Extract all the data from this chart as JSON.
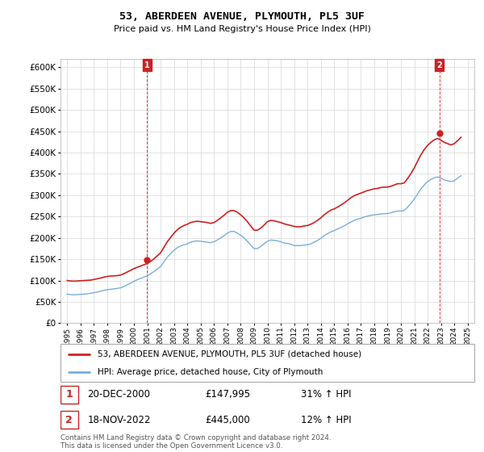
{
  "title": "53, ABERDEEN AVENUE, PLYMOUTH, PL5 3UF",
  "subtitle": "Price paid vs. HM Land Registry's House Price Index (HPI)",
  "ylim": [
    0,
    620000
  ],
  "yticks": [
    0,
    50000,
    100000,
    150000,
    200000,
    250000,
    300000,
    350000,
    400000,
    450000,
    500000,
    550000,
    600000
  ],
  "xlim_start": 1994.5,
  "xlim_end": 2025.5,
  "xticks": [
    1995,
    1996,
    1997,
    1998,
    1999,
    2000,
    2001,
    2002,
    2003,
    2004,
    2005,
    2006,
    2007,
    2008,
    2009,
    2010,
    2011,
    2012,
    2013,
    2014,
    2015,
    2016,
    2017,
    2018,
    2019,
    2020,
    2021,
    2022,
    2023,
    2024,
    2025
  ],
  "xtick_labels": [
    "1995",
    "1996",
    "1997",
    "1998",
    "1999",
    "2000",
    "2001",
    "2002",
    "2003",
    "2004",
    "2005",
    "2006",
    "2007",
    "2008",
    "2009",
    "2010",
    "2011",
    "2012",
    "2013",
    "2014",
    "2015",
    "2016",
    "2017",
    "2018",
    "2019",
    "2020",
    "2021",
    "2022",
    "2023",
    "2024",
    "2025"
  ],
  "grid_color": "#dddddd",
  "hpi_color": "#7aaddb",
  "price_color": "#cc2222",
  "dashed_color": "#cc2222",
  "legend_label_price": "53, ABERDEEN AVENUE, PLYMOUTH, PL5 3UF (detached house)",
  "legend_label_hpi": "HPI: Average price, detached house, City of Plymouth",
  "sale1_year": 2000.97,
  "sale1_price": 147995,
  "sale2_year": 2022.88,
  "sale2_price": 445000,
  "annotation1_date": "20-DEC-2000",
  "annotation1_price": "£147,995",
  "annotation1_hpi": "31% ↑ HPI",
  "annotation2_date": "18-NOV-2022",
  "annotation2_price": "£445,000",
  "annotation2_hpi": "12% ↑ HPI",
  "footnote": "Contains HM Land Registry data © Crown copyright and database right 2024.\nThis data is licensed under the Open Government Licence v3.0.",
  "hpi_data": [
    [
      1995.0,
      68000
    ],
    [
      1995.25,
      67000
    ],
    [
      1995.5,
      66500
    ],
    [
      1995.75,
      67000
    ],
    [
      1996.0,
      67500
    ],
    [
      1996.25,
      68000
    ],
    [
      1996.5,
      69000
    ],
    [
      1996.75,
      70000
    ],
    [
      1997.0,
      71500
    ],
    [
      1997.25,
      73000
    ],
    [
      1997.5,
      75000
    ],
    [
      1997.75,
      77000
    ],
    [
      1998.0,
      78500
    ],
    [
      1998.25,
      79500
    ],
    [
      1998.5,
      80500
    ],
    [
      1998.75,
      81500
    ],
    [
      1999.0,
      83000
    ],
    [
      1999.25,
      86000
    ],
    [
      1999.5,
      90000
    ],
    [
      1999.75,
      94000
    ],
    [
      2000.0,
      98000
    ],
    [
      2000.25,
      102000
    ],
    [
      2000.5,
      105000
    ],
    [
      2000.75,
      108000
    ],
    [
      2001.0,
      111000
    ],
    [
      2001.25,
      116000
    ],
    [
      2001.5,
      121000
    ],
    [
      2001.75,
      127000
    ],
    [
      2002.0,
      133000
    ],
    [
      2002.25,
      144000
    ],
    [
      2002.5,
      155000
    ],
    [
      2002.75,
      163000
    ],
    [
      2003.0,
      171000
    ],
    [
      2003.25,
      177000
    ],
    [
      2003.5,
      181000
    ],
    [
      2003.75,
      184000
    ],
    [
      2004.0,
      186000
    ],
    [
      2004.25,
      190000
    ],
    [
      2004.5,
      192000
    ],
    [
      2004.75,
      193000
    ],
    [
      2005.0,
      192000
    ],
    [
      2005.25,
      191000
    ],
    [
      2005.5,
      190000
    ],
    [
      2005.75,
      189000
    ],
    [
      2006.0,
      191000
    ],
    [
      2006.25,
      195000
    ],
    [
      2006.5,
      200000
    ],
    [
      2006.75,
      205000
    ],
    [
      2007.0,
      211000
    ],
    [
      2007.25,
      215000
    ],
    [
      2007.5,
      215000
    ],
    [
      2007.75,
      211000
    ],
    [
      2008.0,
      206000
    ],
    [
      2008.25,
      200000
    ],
    [
      2008.5,
      192000
    ],
    [
      2008.75,
      183000
    ],
    [
      2009.0,
      175000
    ],
    [
      2009.25,
      175000
    ],
    [
      2009.5,
      180000
    ],
    [
      2009.75,
      186000
    ],
    [
      2010.0,
      192000
    ],
    [
      2010.25,
      195000
    ],
    [
      2010.5,
      194000
    ],
    [
      2010.75,
      193000
    ],
    [
      2011.0,
      191000
    ],
    [
      2011.25,
      188000
    ],
    [
      2011.5,
      187000
    ],
    [
      2011.75,
      185000
    ],
    [
      2012.0,
      182000
    ],
    [
      2012.25,
      182000
    ],
    [
      2012.5,
      182000
    ],
    [
      2012.75,
      183000
    ],
    [
      2013.0,
      184000
    ],
    [
      2013.25,
      186000
    ],
    [
      2013.5,
      190000
    ],
    [
      2013.75,
      194000
    ],
    [
      2014.0,
      199000
    ],
    [
      2014.25,
      205000
    ],
    [
      2014.5,
      210000
    ],
    [
      2014.75,
      214000
    ],
    [
      2015.0,
      217000
    ],
    [
      2015.25,
      221000
    ],
    [
      2015.5,
      224000
    ],
    [
      2015.75,
      228000
    ],
    [
      2016.0,
      233000
    ],
    [
      2016.25,
      237000
    ],
    [
      2016.5,
      241000
    ],
    [
      2016.75,
      244000
    ],
    [
      2017.0,
      246000
    ],
    [
      2017.25,
      249000
    ],
    [
      2017.5,
      251000
    ],
    [
      2017.75,
      253000
    ],
    [
      2018.0,
      254000
    ],
    [
      2018.25,
      255000
    ],
    [
      2018.5,
      256000
    ],
    [
      2018.75,
      257000
    ],
    [
      2019.0,
      257000
    ],
    [
      2019.25,
      259000
    ],
    [
      2019.5,
      261000
    ],
    [
      2019.75,
      263000
    ],
    [
      2020.0,
      263000
    ],
    [
      2020.25,
      264000
    ],
    [
      2020.5,
      272000
    ],
    [
      2020.75,
      281000
    ],
    [
      2021.0,
      291000
    ],
    [
      2021.25,
      303000
    ],
    [
      2021.5,
      315000
    ],
    [
      2021.75,
      324000
    ],
    [
      2022.0,
      332000
    ],
    [
      2022.25,
      337000
    ],
    [
      2022.5,
      341000
    ],
    [
      2022.75,
      343000
    ],
    [
      2023.0,
      340000
    ],
    [
      2023.25,
      336000
    ],
    [
      2023.5,
      334000
    ],
    [
      2023.75,
      332000
    ],
    [
      2024.0,
      334000
    ],
    [
      2024.25,
      340000
    ],
    [
      2024.5,
      346000
    ]
  ],
  "price_data": [
    [
      1995.0,
      100000
    ],
    [
      1995.25,
      99000
    ],
    [
      1995.5,
      98500
    ],
    [
      1995.75,
      99000
    ],
    [
      1996.0,
      99500
    ],
    [
      1996.25,
      100000
    ],
    [
      1996.5,
      100500
    ],
    [
      1996.75,
      101000
    ],
    [
      1997.0,
      102500
    ],
    [
      1997.25,
      104000
    ],
    [
      1997.5,
      106000
    ],
    [
      1997.75,
      108000
    ],
    [
      1998.0,
      109500
    ],
    [
      1998.25,
      110500
    ],
    [
      1998.5,
      111000
    ],
    [
      1998.75,
      111500
    ],
    [
      1999.0,
      113000
    ],
    [
      1999.25,
      116000
    ],
    [
      1999.5,
      120000
    ],
    [
      1999.75,
      124000
    ],
    [
      2000.0,
      128000
    ],
    [
      2000.25,
      131000
    ],
    [
      2000.5,
      134000
    ],
    [
      2000.75,
      137000
    ],
    [
      2001.0,
      140000
    ],
    [
      2001.25,
      145000
    ],
    [
      2001.5,
      151000
    ],
    [
      2001.75,
      158000
    ],
    [
      2002.0,
      165000
    ],
    [
      2002.25,
      178000
    ],
    [
      2002.5,
      191000
    ],
    [
      2002.75,
      201000
    ],
    [
      2003.0,
      211000
    ],
    [
      2003.25,
      219000
    ],
    [
      2003.5,
      225000
    ],
    [
      2003.75,
      229000
    ],
    [
      2004.0,
      232000
    ],
    [
      2004.25,
      236000
    ],
    [
      2004.5,
      238000
    ],
    [
      2004.75,
      239000
    ],
    [
      2005.0,
      238000
    ],
    [
      2005.25,
      237000
    ],
    [
      2005.5,
      236000
    ],
    [
      2005.75,
      234000
    ],
    [
      2006.0,
      236000
    ],
    [
      2006.25,
      241000
    ],
    [
      2006.5,
      247000
    ],
    [
      2006.75,
      253000
    ],
    [
      2007.0,
      260000
    ],
    [
      2007.25,
      264000
    ],
    [
      2007.5,
      264000
    ],
    [
      2007.75,
      260000
    ],
    [
      2008.0,
      254000
    ],
    [
      2008.25,
      247000
    ],
    [
      2008.5,
      238000
    ],
    [
      2008.75,
      228000
    ],
    [
      2009.0,
      218000
    ],
    [
      2009.25,
      218000
    ],
    [
      2009.5,
      223000
    ],
    [
      2009.75,
      230000
    ],
    [
      2010.0,
      238000
    ],
    [
      2010.25,
      241000
    ],
    [
      2010.5,
      240000
    ],
    [
      2010.75,
      238000
    ],
    [
      2011.0,
      236000
    ],
    [
      2011.25,
      233000
    ],
    [
      2011.5,
      231000
    ],
    [
      2011.75,
      229000
    ],
    [
      2012.0,
      227000
    ],
    [
      2012.25,
      226000
    ],
    [
      2012.5,
      226000
    ],
    [
      2012.75,
      228000
    ],
    [
      2013.0,
      229000
    ],
    [
      2013.25,
      232000
    ],
    [
      2013.5,
      236000
    ],
    [
      2013.75,
      241000
    ],
    [
      2014.0,
      247000
    ],
    [
      2014.25,
      254000
    ],
    [
      2014.5,
      260000
    ],
    [
      2014.75,
      265000
    ],
    [
      2015.0,
      268000
    ],
    [
      2015.25,
      272000
    ],
    [
      2015.5,
      277000
    ],
    [
      2015.75,
      282000
    ],
    [
      2016.0,
      288000
    ],
    [
      2016.25,
      294000
    ],
    [
      2016.5,
      299000
    ],
    [
      2016.75,
      302000
    ],
    [
      2017.0,
      305000
    ],
    [
      2017.25,
      308000
    ],
    [
      2017.5,
      311000
    ],
    [
      2017.75,
      313000
    ],
    [
      2018.0,
      315000
    ],
    [
      2018.25,
      316000
    ],
    [
      2018.5,
      318000
    ],
    [
      2018.75,
      319000
    ],
    [
      2019.0,
      319000
    ],
    [
      2019.25,
      321000
    ],
    [
      2019.5,
      324000
    ],
    [
      2019.75,
      327000
    ],
    [
      2020.0,
      327000
    ],
    [
      2020.25,
      329000
    ],
    [
      2020.5,
      339000
    ],
    [
      2020.75,
      351000
    ],
    [
      2021.0,
      364000
    ],
    [
      2021.25,
      380000
    ],
    [
      2021.5,
      395000
    ],
    [
      2021.75,
      407000
    ],
    [
      2022.0,
      417000
    ],
    [
      2022.25,
      424000
    ],
    [
      2022.5,
      430000
    ],
    [
      2022.75,
      433000
    ],
    [
      2023.0,
      429000
    ],
    [
      2023.25,
      424000
    ],
    [
      2023.5,
      421000
    ],
    [
      2023.75,
      418000
    ],
    [
      2024.0,
      421000
    ],
    [
      2024.25,
      428000
    ],
    [
      2024.5,
      436000
    ]
  ],
  "vline1_x": 2000.97,
  "vline2_x": 2022.88
}
